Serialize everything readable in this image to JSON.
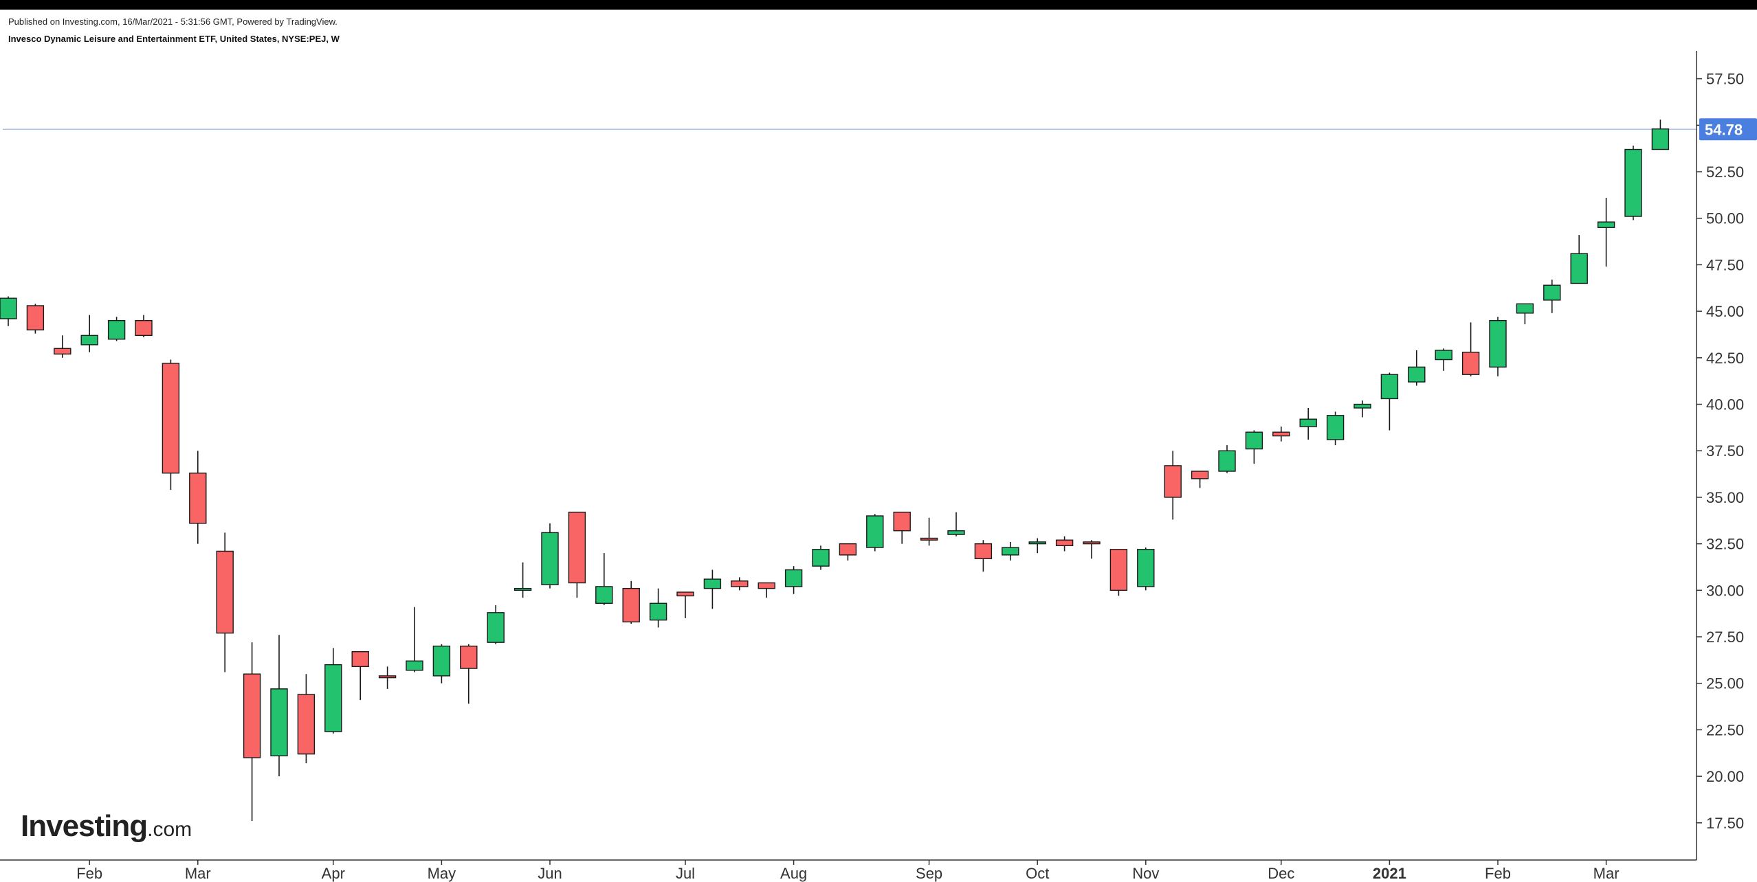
{
  "header": {
    "published": "Published on Investing.com, 16/Mar/2021 - 5:31:56 GMT, Powered by TradingView.",
    "title": "Invesco Dynamic Leisure and Entertainment ETF, United States, NYSE:PEJ, W"
  },
  "logo": {
    "main": "Investing",
    "suffix": ".com"
  },
  "colors": {
    "up": "#22c26e",
    "down": "#f96565",
    "outline": "#1a1a1a",
    "last_price_line": "#a9c1ee",
    "last_price_badge": "#4a7fe0",
    "axis": "#333333"
  },
  "chart_data": {
    "type": "candlestick",
    "title": "Invesco Dynamic Leisure and Entertainment ETF, United States, NYSE:PEJ, W",
    "interval": "W",
    "ylim": [
      15.5,
      59
    ],
    "y_ticks": [
      17.5,
      20.0,
      22.5,
      25.0,
      27.5,
      30.0,
      32.5,
      35.0,
      37.5,
      40.0,
      42.5,
      45.0,
      47.5,
      50.0,
      52.5,
      55.0,
      57.5
    ],
    "y_tick_labels": [
      "17.50",
      "20.00",
      "22.50",
      "25.00",
      "27.50",
      "30.00",
      "32.50",
      "35.00",
      "37.50",
      "40.00",
      "42.50",
      "45.00",
      "47.50",
      "50.00",
      "52.50",
      "55.00",
      "57.50"
    ],
    "x_tick_labels": [
      {
        "label": "Feb",
        "index": 3,
        "bold": false
      },
      {
        "label": "Mar",
        "index": 7,
        "bold": false
      },
      {
        "label": "Apr",
        "index": 12,
        "bold": false
      },
      {
        "label": "May",
        "index": 16,
        "bold": false
      },
      {
        "label": "Jun",
        "index": 20,
        "bold": false
      },
      {
        "label": "Jul",
        "index": 25,
        "bold": false
      },
      {
        "label": "Aug",
        "index": 29,
        "bold": false
      },
      {
        "label": "Sep",
        "index": 34,
        "bold": false
      },
      {
        "label": "Oct",
        "index": 38,
        "bold": false
      },
      {
        "label": "Nov",
        "index": 42,
        "bold": false
      },
      {
        "label": "Dec",
        "index": 47,
        "bold": false
      },
      {
        "label": "2021",
        "index": 51,
        "bold": true
      },
      {
        "label": "Feb",
        "index": 55,
        "bold": false
      },
      {
        "label": "Mar",
        "index": 59,
        "bold": false
      }
    ],
    "last_price": 54.78,
    "last_price_label": "54.78",
    "grid": false,
    "candles": [
      {
        "o": 44.6,
        "h": 45.8,
        "l": 44.2,
        "c": 45.7
      },
      {
        "o": 45.3,
        "h": 45.4,
        "l": 43.8,
        "c": 44.0
      },
      {
        "o": 43.0,
        "h": 43.7,
        "l": 42.5,
        "c": 42.7
      },
      {
        "o": 43.2,
        "h": 44.8,
        "l": 42.8,
        "c": 43.7
      },
      {
        "o": 43.5,
        "h": 44.7,
        "l": 43.4,
        "c": 44.5
      },
      {
        "o": 44.5,
        "h": 44.8,
        "l": 43.6,
        "c": 43.7
      },
      {
        "o": 42.2,
        "h": 42.4,
        "l": 35.4,
        "c": 36.3
      },
      {
        "o": 36.3,
        "h": 37.5,
        "l": 32.5,
        "c": 33.6
      },
      {
        "o": 32.1,
        "h": 33.1,
        "l": 25.6,
        "c": 27.7
      },
      {
        "o": 25.5,
        "h": 27.2,
        "l": 17.6,
        "c": 21.0
      },
      {
        "o": 21.1,
        "h": 27.6,
        "l": 20.0,
        "c": 24.7
      },
      {
        "o": 24.4,
        "h": 25.5,
        "l": 20.7,
        "c": 21.2
      },
      {
        "o": 22.4,
        "h": 26.9,
        "l": 22.3,
        "c": 26.0
      },
      {
        "o": 26.7,
        "h": 26.7,
        "l": 24.1,
        "c": 25.9
      },
      {
        "o": 25.4,
        "h": 25.9,
        "l": 24.7,
        "c": 25.3
      },
      {
        "o": 25.7,
        "h": 29.1,
        "l": 25.6,
        "c": 26.2
      },
      {
        "o": 25.4,
        "h": 27.1,
        "l": 25.0,
        "c": 27.0
      },
      {
        "o": 27.0,
        "h": 27.1,
        "l": 23.9,
        "c": 25.8
      },
      {
        "o": 27.2,
        "h": 29.2,
        "l": 27.1,
        "c": 28.8
      },
      {
        "o": 30.0,
        "h": 31.5,
        "l": 29.6,
        "c": 30.1
      },
      {
        "o": 30.3,
        "h": 33.6,
        "l": 30.1,
        "c": 33.1
      },
      {
        "o": 34.2,
        "h": 34.2,
        "l": 29.6,
        "c": 30.4
      },
      {
        "o": 29.3,
        "h": 32.0,
        "l": 29.2,
        "c": 30.2
      },
      {
        "o": 30.1,
        "h": 30.5,
        "l": 28.2,
        "c": 28.3
      },
      {
        "o": 28.4,
        "h": 30.1,
        "l": 28.0,
        "c": 29.3
      },
      {
        "o": 29.9,
        "h": 29.9,
        "l": 28.5,
        "c": 29.7
      },
      {
        "o": 30.1,
        "h": 31.1,
        "l": 29.0,
        "c": 30.6
      },
      {
        "o": 30.5,
        "h": 30.7,
        "l": 30.0,
        "c": 30.2
      },
      {
        "o": 30.4,
        "h": 30.4,
        "l": 29.6,
        "c": 30.1
      },
      {
        "o": 30.2,
        "h": 31.3,
        "l": 29.8,
        "c": 31.1
      },
      {
        "o": 31.3,
        "h": 32.4,
        "l": 31.1,
        "c": 32.2
      },
      {
        "o": 32.5,
        "h": 32.5,
        "l": 31.6,
        "c": 31.9
      },
      {
        "o": 32.3,
        "h": 34.1,
        "l": 32.1,
        "c": 34.0
      },
      {
        "o": 34.2,
        "h": 34.2,
        "l": 32.5,
        "c": 33.2
      },
      {
        "o": 32.8,
        "h": 33.9,
        "l": 32.4,
        "c": 32.7
      },
      {
        "o": 33.0,
        "h": 34.2,
        "l": 32.9,
        "c": 33.2
      },
      {
        "o": 32.5,
        "h": 32.7,
        "l": 31.0,
        "c": 31.7
      },
      {
        "o": 31.9,
        "h": 32.6,
        "l": 31.6,
        "c": 32.3
      },
      {
        "o": 32.5,
        "h": 32.8,
        "l": 32.0,
        "c": 32.6
      },
      {
        "o": 32.7,
        "h": 32.9,
        "l": 32.1,
        "c": 32.4
      },
      {
        "o": 32.6,
        "h": 32.7,
        "l": 31.7,
        "c": 32.5
      },
      {
        "o": 32.2,
        "h": 32.2,
        "l": 29.7,
        "c": 30.0
      },
      {
        "o": 30.2,
        "h": 32.3,
        "l": 30.0,
        "c": 32.2
      },
      {
        "o": 36.7,
        "h": 37.5,
        "l": 33.8,
        "c": 35.0
      },
      {
        "o": 36.4,
        "h": 36.4,
        "l": 35.5,
        "c": 36.0
      },
      {
        "o": 36.4,
        "h": 37.8,
        "l": 36.3,
        "c": 37.5
      },
      {
        "o": 37.6,
        "h": 38.6,
        "l": 36.8,
        "c": 38.5
      },
      {
        "o": 38.5,
        "h": 38.8,
        "l": 38.0,
        "c": 38.3
      },
      {
        "o": 38.8,
        "h": 39.8,
        "l": 38.1,
        "c": 39.2
      },
      {
        "o": 38.1,
        "h": 39.6,
        "l": 37.8,
        "c": 39.4
      },
      {
        "o": 39.8,
        "h": 40.2,
        "l": 39.3,
        "c": 40.0
      },
      {
        "o": 40.3,
        "h": 41.7,
        "l": 38.6,
        "c": 41.6
      },
      {
        "o": 41.2,
        "h": 42.9,
        "l": 41.0,
        "c": 42.0
      },
      {
        "o": 42.4,
        "h": 43.0,
        "l": 41.8,
        "c": 42.9
      },
      {
        "o": 42.8,
        "h": 44.4,
        "l": 41.5,
        "c": 41.6
      },
      {
        "o": 42.0,
        "h": 44.7,
        "l": 41.5,
        "c": 44.5
      },
      {
        "o": 44.9,
        "h": 45.4,
        "l": 44.3,
        "c": 45.4
      },
      {
        "o": 45.6,
        "h": 46.7,
        "l": 44.9,
        "c": 46.4
      },
      {
        "o": 46.5,
        "h": 49.1,
        "l": 46.5,
        "c": 48.1
      },
      {
        "o": 49.5,
        "h": 51.1,
        "l": 47.4,
        "c": 49.8
      },
      {
        "o": 50.1,
        "h": 53.9,
        "l": 49.9,
        "c": 53.7
      },
      {
        "o": 53.7,
        "h": 55.3,
        "l": 53.7,
        "c": 54.8
      }
    ]
  }
}
